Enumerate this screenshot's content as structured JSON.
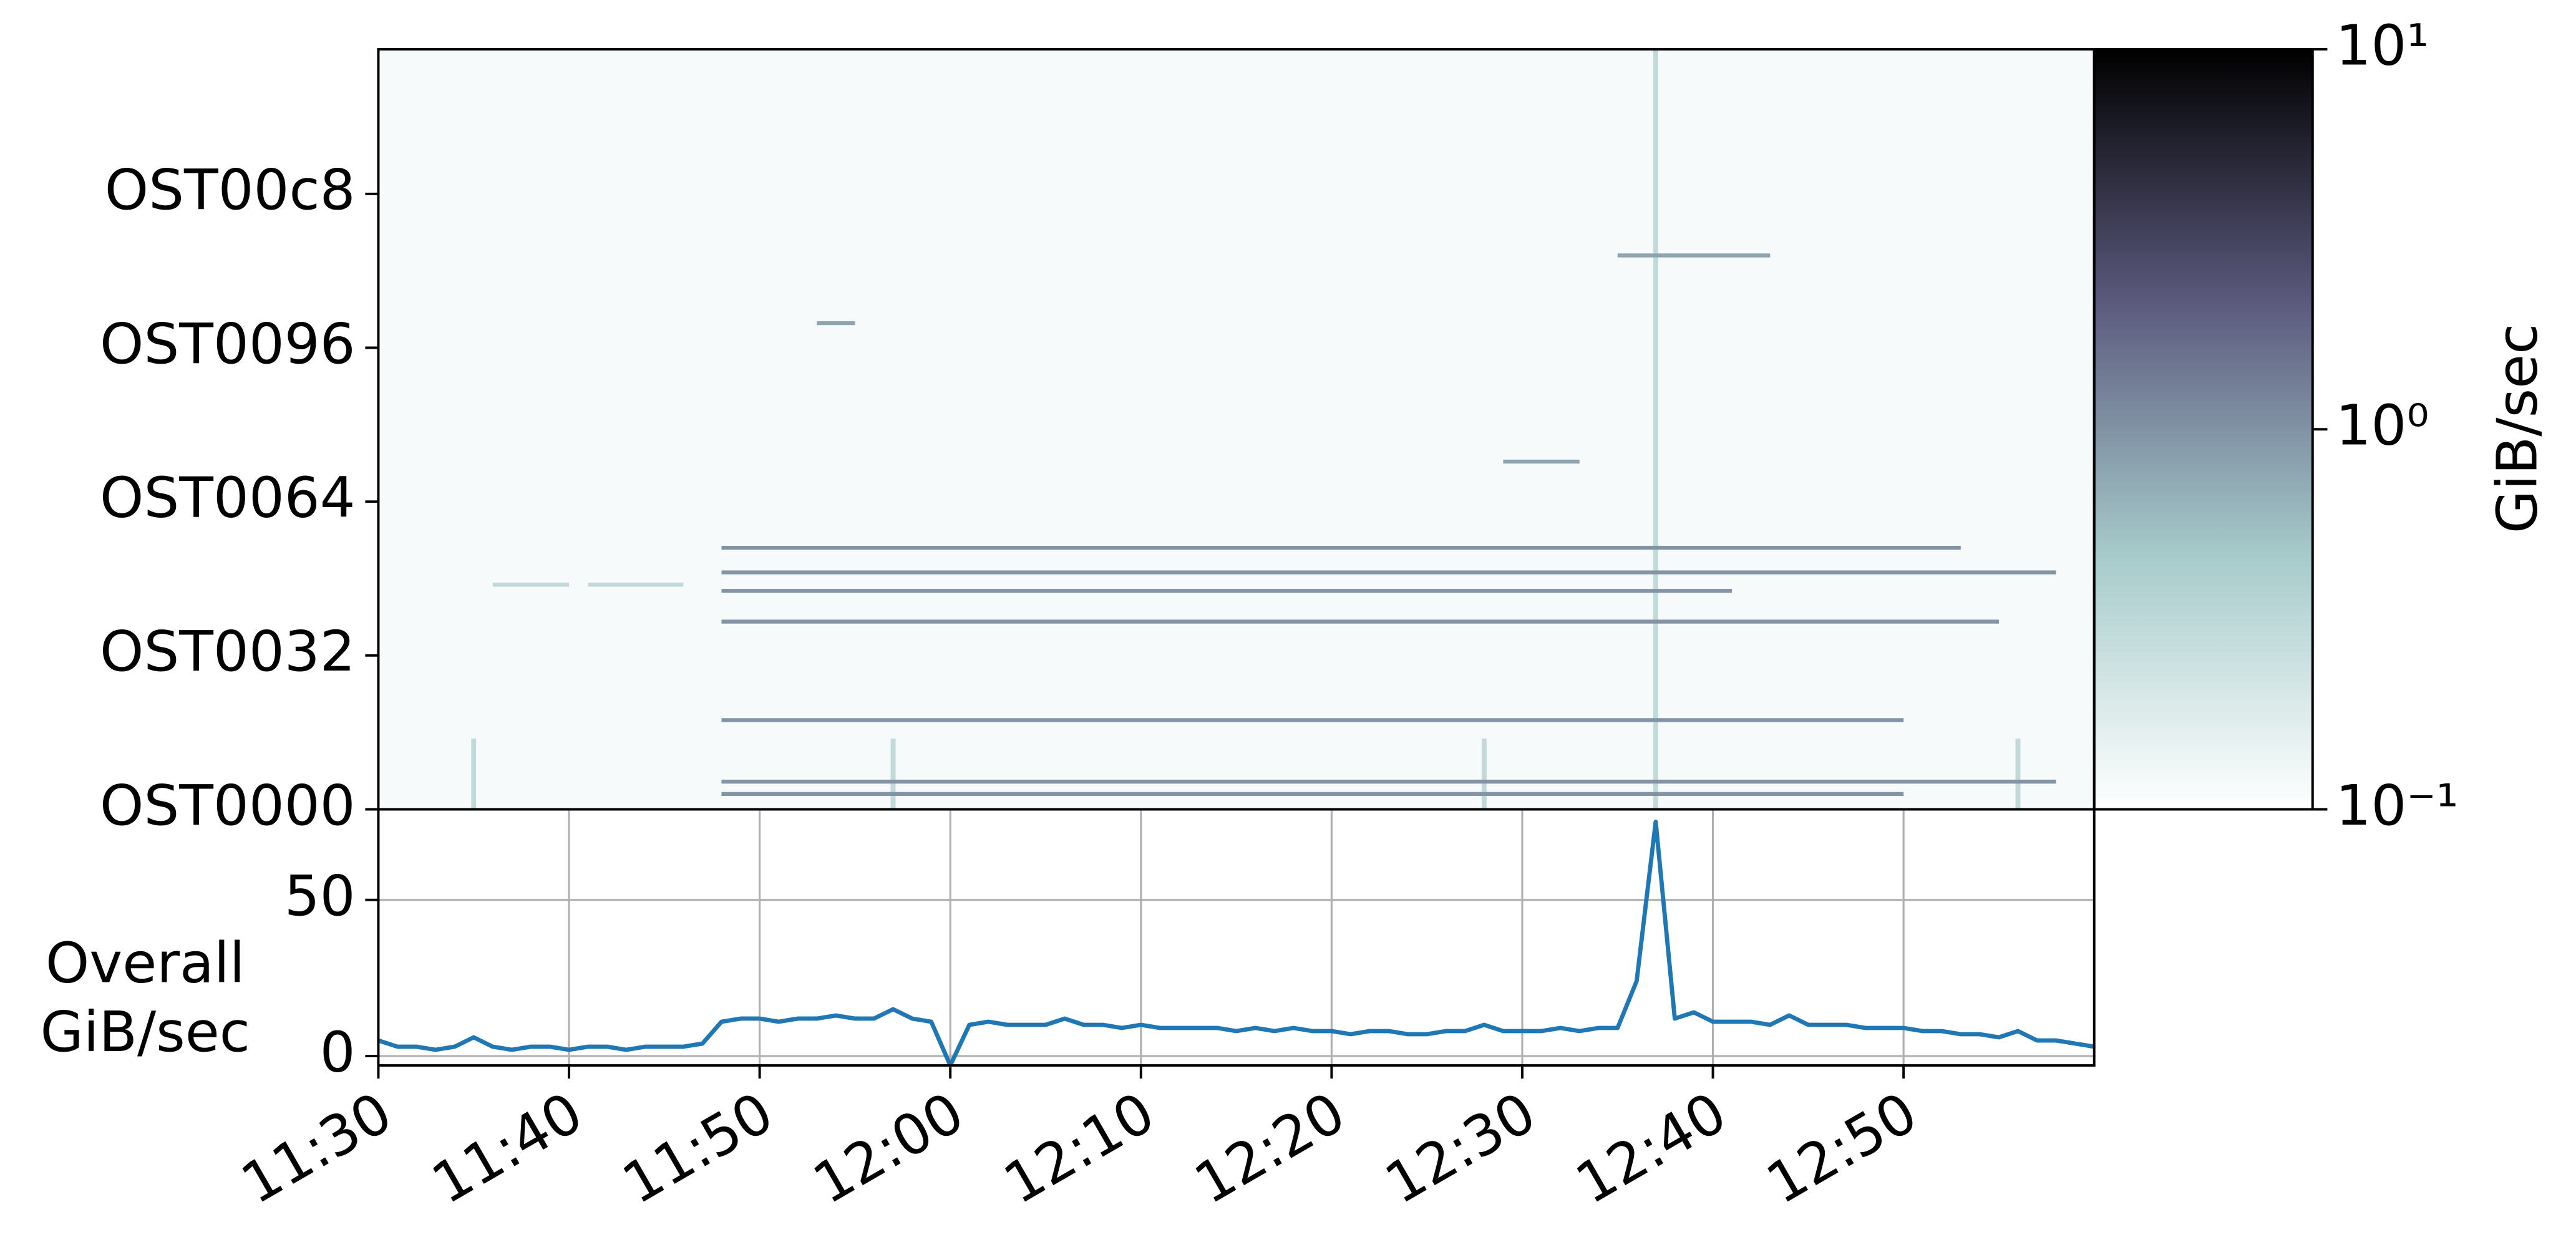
{
  "chart_data": [
    {
      "type": "heatmap",
      "colorbar_label": "GiB/sec",
      "log_scale": true,
      "clim": [
        0.1,
        10
      ],
      "colormap": [
        "#ffffff",
        "#a7cbcb",
        "#5b5a7e",
        "#000000"
      ],
      "cticks": [
        {
          "value": 0.1,
          "label": "10⁻¹"
        },
        {
          "value": 1,
          "label": "10⁰"
        },
        {
          "value": 10,
          "label": "10¹"
        }
      ],
      "xlim": [
        "11:30",
        "13:00"
      ],
      "ylim": [
        0,
        247
      ],
      "yticks": [
        {
          "value": 0,
          "label": "OST0000"
        },
        {
          "value": 50,
          "label": "OST0032"
        },
        {
          "value": 100,
          "label": "OST0064"
        },
        {
          "value": 150,
          "label": "OST0096"
        },
        {
          "value": 200,
          "label": "OST00c8"
        }
      ],
      "streaks": [
        {
          "ost": 85,
          "start": "11:48",
          "end": "12:53",
          "value": 1
        },
        {
          "ost": 77,
          "start": "11:48",
          "end": "12:58",
          "value": 1
        },
        {
          "ost": 71,
          "start": "11:48",
          "end": "12:41",
          "value": 1
        },
        {
          "ost": 61,
          "start": "11:48",
          "end": "12:55",
          "value": 1
        },
        {
          "ost": 29,
          "start": "11:48",
          "end": "12:50",
          "value": 1
        },
        {
          "ost": 9,
          "start": "11:48",
          "end": "12:58",
          "value": 1
        },
        {
          "ost": 5,
          "start": "11:48",
          "end": "12:50",
          "value": 1
        },
        {
          "ost": 180,
          "start": "12:35",
          "end": "12:43",
          "value": 0.8
        },
        {
          "ost": 113,
          "start": "12:29",
          "end": "12:33",
          "value": 0.8
        },
        {
          "ost": 158,
          "start": "11:53",
          "end": "11:55",
          "value": 0.8
        },
        {
          "ost": 73,
          "start": "11:36",
          "end": "11:40",
          "value": 0.3
        },
        {
          "ost": 73,
          "start": "11:41",
          "end": "11:46",
          "value": 0.3
        }
      ],
      "columns": [
        {
          "time": "12:37",
          "ost_from": 0,
          "ost_to": 247,
          "value": 0.3
        },
        {
          "time": "11:35",
          "ost_from": 0,
          "ost_to": 23,
          "value": 0.3
        },
        {
          "time": "11:57",
          "ost_from": 0,
          "ost_to": 23,
          "value": 0.3
        },
        {
          "time": "12:28",
          "ost_from": 0,
          "ost_to": 23,
          "value": 0.3
        },
        {
          "time": "12:56",
          "ost_from": 0,
          "ost_to": 23,
          "value": 0.3
        }
      ]
    },
    {
      "type": "line",
      "ylabel": [
        "Overall",
        "GiB/sec"
      ],
      "color": "#1f77b4",
      "grid": true,
      "xlim": [
        "11:30",
        "13:00"
      ],
      "xticks": [
        "11:30",
        "11:40",
        "11:50",
        "12:00",
        "12:10",
        "12:20",
        "12:30",
        "12:40",
        "12:50"
      ],
      "ylim": [
        -3,
        79
      ],
      "yticks": [
        0,
        50
      ],
      "x": [
        "11:30",
        "11:31",
        "11:32",
        "11:33",
        "11:34",
        "11:35",
        "11:36",
        "11:37",
        "11:38",
        "11:39",
        "11:40",
        "11:41",
        "11:42",
        "11:43",
        "11:44",
        "11:45",
        "11:46",
        "11:47",
        "11:48",
        "11:49",
        "11:50",
        "11:51",
        "11:52",
        "11:53",
        "11:54",
        "11:55",
        "11:56",
        "11:57",
        "11:58",
        "11:59",
        "12:00",
        "12:01",
        "12:02",
        "12:03",
        "12:04",
        "12:05",
        "12:06",
        "12:07",
        "12:08",
        "12:09",
        "12:10",
        "12:11",
        "12:12",
        "12:13",
        "12:14",
        "12:15",
        "12:16",
        "12:17",
        "12:18",
        "12:19",
        "12:20",
        "12:21",
        "12:22",
        "12:23",
        "12:24",
        "12:25",
        "12:26",
        "12:27",
        "12:28",
        "12:29",
        "12:30",
        "12:31",
        "12:32",
        "12:33",
        "12:34",
        "12:35",
        "12:36",
        "12:37",
        "12:38",
        "12:39",
        "12:40",
        "12:41",
        "12:42",
        "12:43",
        "12:44",
        "12:45",
        "12:46",
        "12:47",
        "12:48",
        "12:49",
        "12:50",
        "12:51",
        "12:52",
        "12:53",
        "12:54",
        "12:55",
        "12:56",
        "12:57",
        "12:58",
        "12:59",
        "13:00"
      ],
      "values": [
        5,
        3,
        3,
        2,
        3,
        6,
        3,
        2,
        3,
        3,
        2,
        3,
        3,
        2,
        3,
        3,
        3,
        4,
        11,
        12,
        12,
        11,
        12,
        12,
        13,
        12,
        12,
        15,
        12,
        11,
        -3,
        10,
        11,
        10,
        10,
        10,
        12,
        10,
        10,
        9,
        10,
        9,
        9,
        9,
        9,
        8,
        9,
        8,
        9,
        8,
        8,
        7,
        8,
        8,
        7,
        7,
        8,
        8,
        10,
        8,
        8,
        8,
        9,
        8,
        9,
        9,
        24,
        75,
        12,
        14,
        11,
        11,
        11,
        10,
        13,
        10,
        10,
        10,
        9,
        9,
        9,
        8,
        8,
        7,
        7,
        6,
        8,
        5,
        5,
        4,
        3
      ]
    }
  ]
}
